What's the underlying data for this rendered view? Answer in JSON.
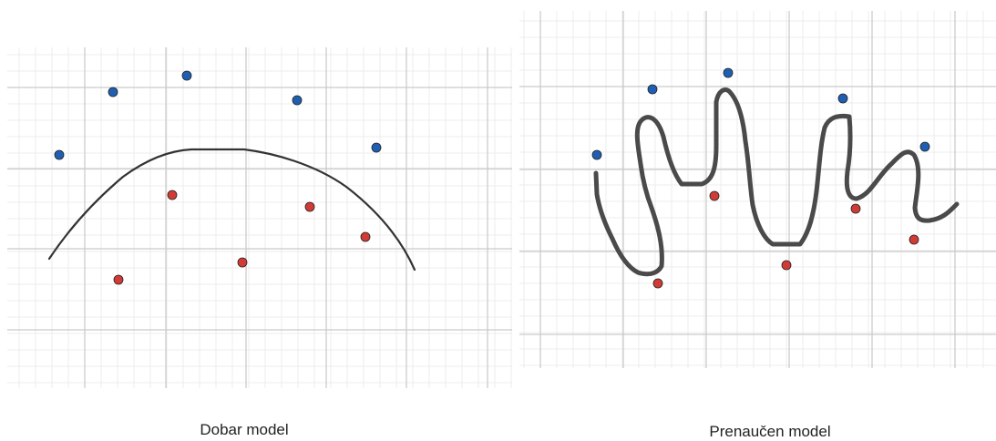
{
  "panels": [
    {
      "caption": "Dobar model",
      "colors": {
        "blue": "#1f5fb3",
        "red": "#d13b36",
        "curve": "#333333"
      }
    },
    {
      "caption": "Prenaučen model",
      "colors": {
        "blue": "#1f5fb3",
        "red": "#d13b36",
        "curve": "#4a4a4a"
      }
    }
  ]
}
